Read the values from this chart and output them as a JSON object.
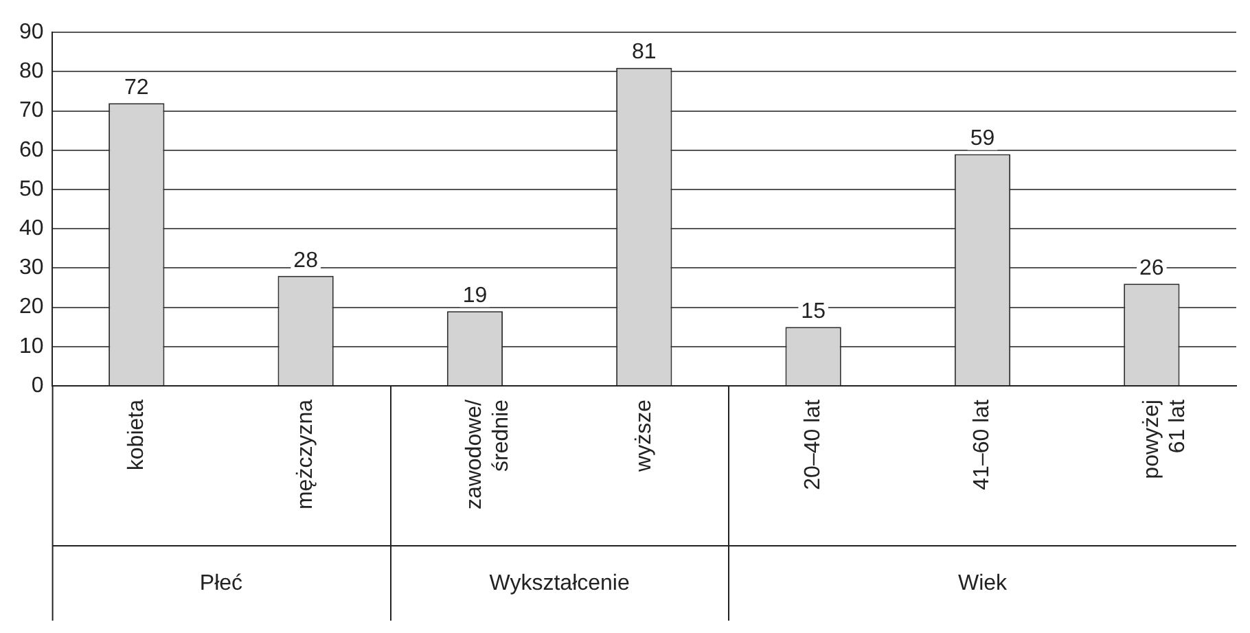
{
  "chart_data": {
    "type": "bar",
    "categories": [
      "kobieta",
      "mężczyzna",
      "zawodowe/ średnie",
      "wyższe",
      "20–40 lat",
      "41–60 lat",
      "powyżej 61 lat"
    ],
    "values": [
      72,
      28,
      19,
      81,
      15,
      59,
      26
    ],
    "color": "#d3d3d3",
    "ylim": [
      0,
      90
    ],
    "yticks": [
      0,
      10,
      20,
      30,
      40,
      50,
      60,
      70,
      80,
      90
    ],
    "grid": "y",
    "data_labels": true,
    "legend": false,
    "annotations": [
      "Płeć",
      "Wykształcenie",
      "Wiek"
    ]
  }
}
